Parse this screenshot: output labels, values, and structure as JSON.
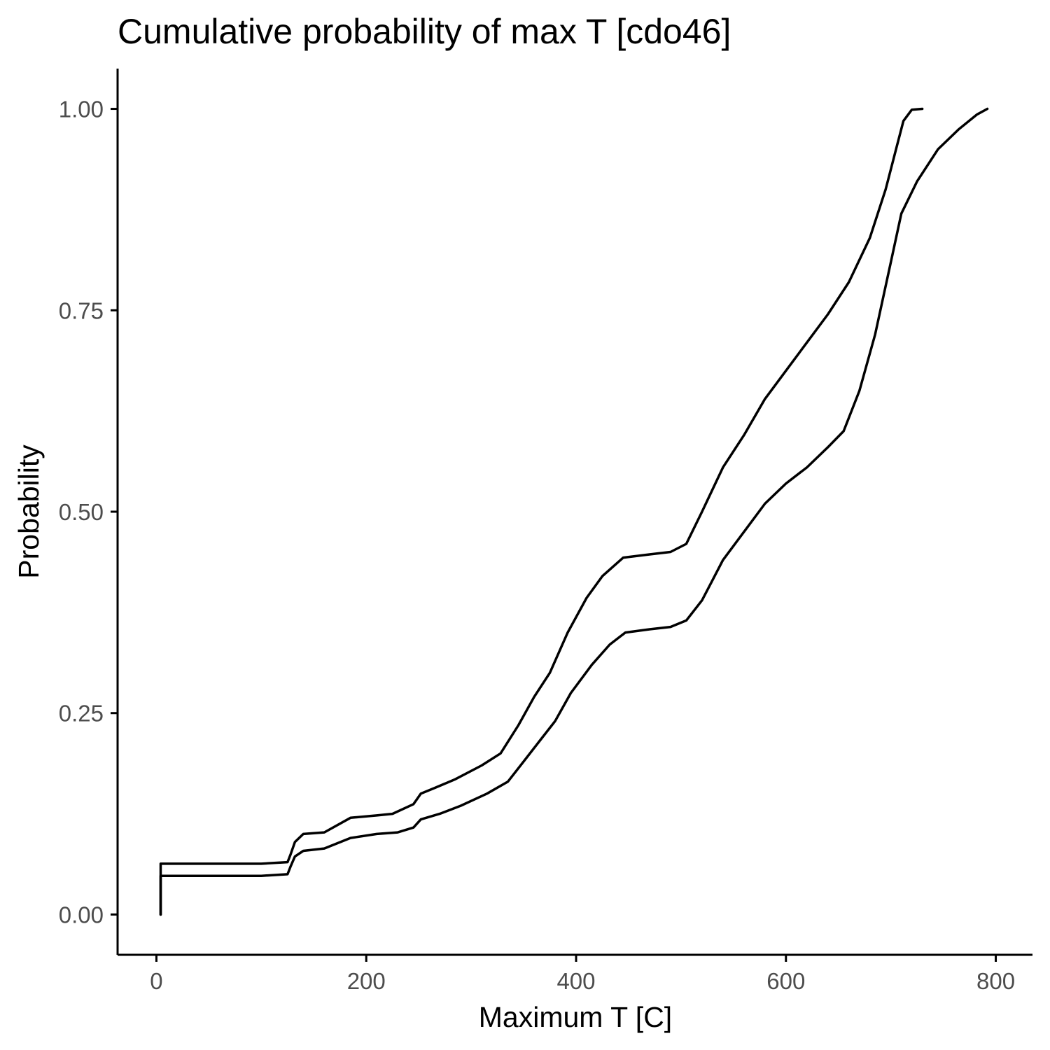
{
  "chart_data": {
    "type": "line",
    "title": "Cumulative probability of max T [cdo46]",
    "xlabel": "Maximum T [C]",
    "ylabel": "Probability",
    "xlim": [
      -37,
      835
    ],
    "ylim": [
      -0.05,
      1.05
    ],
    "x_ticks": [
      0,
      200,
      400,
      600,
      800
    ],
    "x_tick_labels": [
      "0",
      "200",
      "400",
      "600",
      "800"
    ],
    "y_ticks": [
      0,
      0.25,
      0.5,
      0.75,
      1
    ],
    "y_tick_labels": [
      "0.00",
      "0.25",
      "0.50",
      "0.75",
      "1.00"
    ],
    "grid": false,
    "legend": "none",
    "line_color": "#000000",
    "series": [
      {
        "points": [
          [
            4,
            0
          ],
          [
            4,
            0.063
          ],
          [
            100,
            0.063
          ],
          [
            125,
            0.065
          ],
          [
            128,
            0.075
          ],
          [
            132,
            0.09
          ],
          [
            140,
            0.1
          ],
          [
            160,
            0.102
          ],
          [
            185,
            0.12
          ],
          [
            210,
            0.123
          ],
          [
            225,
            0.125
          ],
          [
            245,
            0.137
          ],
          [
            252,
            0.15
          ],
          [
            265,
            0.157
          ],
          [
            285,
            0.168
          ],
          [
            310,
            0.185
          ],
          [
            328,
            0.2
          ],
          [
            345,
            0.235
          ],
          [
            360,
            0.27
          ],
          [
            375,
            0.3
          ],
          [
            392,
            0.35
          ],
          [
            410,
            0.393
          ],
          [
            425,
            0.42
          ],
          [
            445,
            0.443
          ],
          [
            470,
            0.447
          ],
          [
            490,
            0.45
          ],
          [
            505,
            0.46
          ],
          [
            520,
            0.5
          ],
          [
            540,
            0.555
          ],
          [
            560,
            0.595
          ],
          [
            580,
            0.64
          ],
          [
            600,
            0.675
          ],
          [
            620,
            0.71
          ],
          [
            640,
            0.745
          ],
          [
            660,
            0.785
          ],
          [
            680,
            0.84
          ],
          [
            695,
            0.9
          ],
          [
            705,
            0.95
          ],
          [
            712,
            0.985
          ],
          [
            720,
            0.999
          ],
          [
            730,
            1
          ]
        ]
      },
      {
        "points": [
          [
            4,
            0
          ],
          [
            4,
            0.048
          ],
          [
            100,
            0.048
          ],
          [
            125,
            0.05
          ],
          [
            128,
            0.06
          ],
          [
            132,
            0.072
          ],
          [
            140,
            0.079
          ],
          [
            160,
            0.082
          ],
          [
            185,
            0.095
          ],
          [
            210,
            0.1
          ],
          [
            230,
            0.102
          ],
          [
            245,
            0.108
          ],
          [
            252,
            0.118
          ],
          [
            270,
            0.125
          ],
          [
            290,
            0.135
          ],
          [
            315,
            0.15
          ],
          [
            335,
            0.165
          ],
          [
            350,
            0.19
          ],
          [
            365,
            0.215
          ],
          [
            380,
            0.24
          ],
          [
            395,
            0.275
          ],
          [
            415,
            0.31
          ],
          [
            432,
            0.335
          ],
          [
            447,
            0.35
          ],
          [
            470,
            0.354
          ],
          [
            490,
            0.357
          ],
          [
            505,
            0.365
          ],
          [
            520,
            0.39
          ],
          [
            540,
            0.44
          ],
          [
            560,
            0.475
          ],
          [
            580,
            0.51
          ],
          [
            600,
            0.535
          ],
          [
            620,
            0.555
          ],
          [
            640,
            0.58
          ],
          [
            655,
            0.6
          ],
          [
            670,
            0.65
          ],
          [
            685,
            0.72
          ],
          [
            700,
            0.81
          ],
          [
            710,
            0.87
          ],
          [
            725,
            0.91
          ],
          [
            745,
            0.95
          ],
          [
            765,
            0.975
          ],
          [
            782,
            0.993
          ],
          [
            792,
            1
          ]
        ]
      }
    ]
  }
}
